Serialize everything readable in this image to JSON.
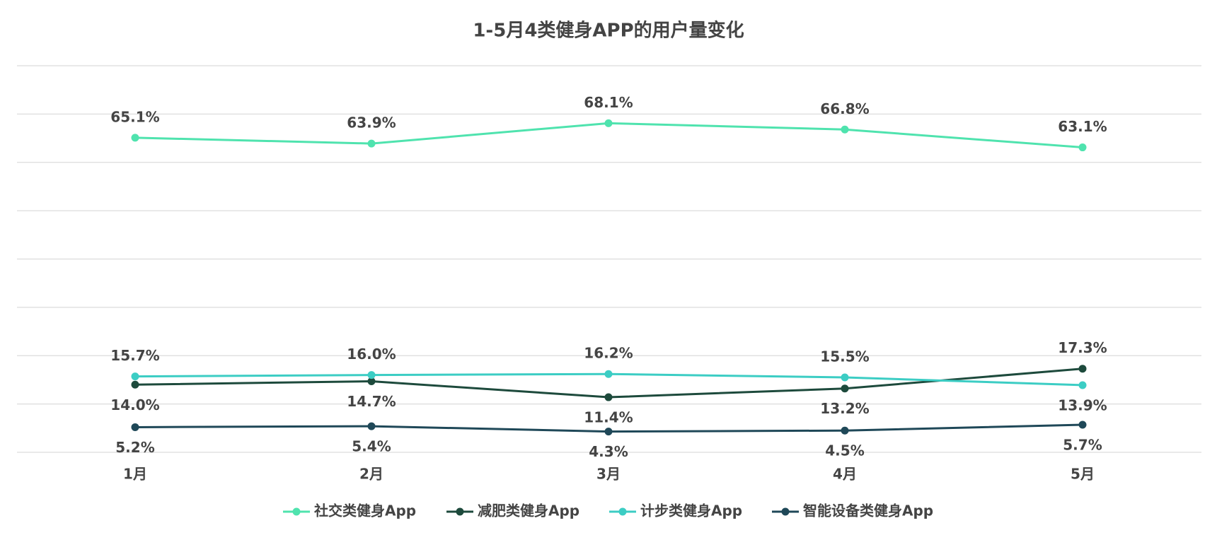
{
  "chart_data": {
    "type": "line",
    "title": "1-5月4类健身APP的用户量变化",
    "categories": [
      "1月",
      "2月",
      "3月",
      "4月",
      "5月"
    ],
    "series": [
      {
        "name": "社交类健身App",
        "color": "#4fe3ae",
        "values": [
          65.1,
          63.9,
          68.1,
          66.8,
          63.1
        ],
        "value_labels": [
          "65.1%",
          "63.9%",
          "68.1%",
          "66.8%",
          "63.1%"
        ]
      },
      {
        "name": "减肥类健身App",
        "color": "#1d4a3c",
        "values": [
          14.0,
          14.7,
          11.4,
          13.2,
          17.3
        ],
        "value_labels": [
          "14.0%",
          "14.7%",
          "11.4%",
          "13.2%",
          "17.3%"
        ]
      },
      {
        "name": "计步类健身App",
        "color": "#3ccdc4",
        "values": [
          15.7,
          16.0,
          16.2,
          15.5,
          13.9
        ],
        "value_labels": [
          "15.7%",
          "16.0%",
          "16.2%",
          "15.5%",
          "13.9%"
        ]
      },
      {
        "name": "智能设备类健身App",
        "color": "#1f4858",
        "values": [
          5.2,
          5.4,
          4.3,
          4.5,
          5.7
        ],
        "value_labels": [
          "5.2%",
          "5.4%",
          "4.3%",
          "4.5%",
          "5.7%"
        ]
      }
    ],
    "ylim": [
      0,
      80
    ],
    "yticks": [
      0,
      10,
      20,
      30,
      40,
      50,
      60,
      70,
      80
    ],
    "grid": true,
    "legend": "bottom"
  }
}
